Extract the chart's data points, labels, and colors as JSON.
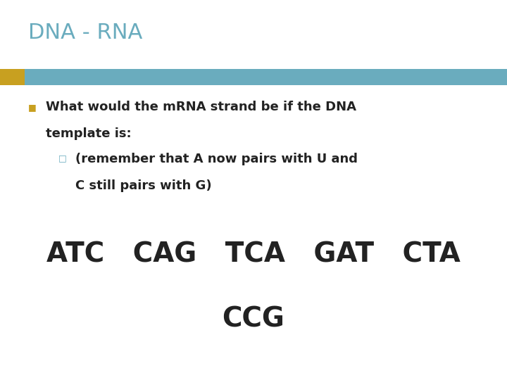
{
  "title": "DNA - RNA",
  "title_color": "#6aacbe",
  "background_color": "#ffffff",
  "bar_color_gold": "#c8a020",
  "bar_color_blue": "#6aacbe",
  "bullet_marker": "■",
  "sub_bullet_marker": "□",
  "bullet_line1": "What would the mRNA strand be if the DNA",
  "bullet_line2": "template is:",
  "sub_line1": "(remember that A now pairs with U and",
  "sub_line2": "C still pairs with G)",
  "dna_row1": "ATC   CAG   TCA   GAT   CTA",
  "dna_row2": "CCG",
  "title_fontsize": 22,
  "body_fontsize": 13,
  "dna_fontsize": 28,
  "bullet_color": "#c8a020",
  "sub_bullet_color": "#6aacbe",
  "text_color": "#222222"
}
